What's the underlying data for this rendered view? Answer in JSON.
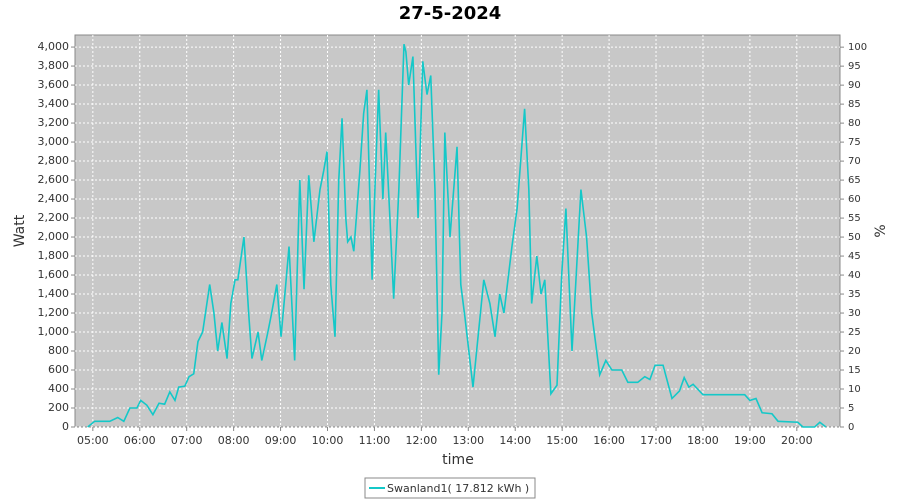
{
  "chart_data": {
    "type": "line",
    "title": "27-5-2024",
    "x_label": "time",
    "y_label": "Watt",
    "y2_label": "%",
    "xlim": [
      4.62,
      20.92
    ],
    "ylim": [
      0,
      4127
    ],
    "y2lim": [
      0,
      103.2
    ],
    "xticks": [
      {
        "value": 5,
        "label": "05:00"
      },
      {
        "value": 6,
        "label": "06:00"
      },
      {
        "value": 7,
        "label": "07:00"
      },
      {
        "value": 8,
        "label": "08:00"
      },
      {
        "value": 9,
        "label": "09:00"
      },
      {
        "value": 10,
        "label": "10:00"
      },
      {
        "value": 11,
        "label": "11:00"
      },
      {
        "value": 12,
        "label": "12:00"
      },
      {
        "value": 13,
        "label": "13:00"
      },
      {
        "value": 14,
        "label": "14:00"
      },
      {
        "value": 15,
        "label": "15:00"
      },
      {
        "value": 16,
        "label": "16:00"
      },
      {
        "value": 17,
        "label": "17:00"
      },
      {
        "value": 18,
        "label": "18:00"
      },
      {
        "value": 19,
        "label": "19:00"
      },
      {
        "value": 20,
        "label": "20:00"
      }
    ],
    "yticks": [
      0,
      200,
      400,
      600,
      800,
      {
        "value": 1000,
        "label": "1,000"
      },
      {
        "value": 1200,
        "label": "1,200"
      },
      {
        "value": 1400,
        "label": "1,400"
      },
      {
        "value": 1600,
        "label": "1,600"
      },
      {
        "value": 1800,
        "label": "1,800"
      },
      {
        "value": 2000,
        "label": "2,000"
      },
      {
        "value": 2200,
        "label": "2,200"
      },
      {
        "value": 2400,
        "label": "2,400"
      },
      {
        "value": 2600,
        "label": "2,600"
      },
      {
        "value": 2800,
        "label": "2,800"
      },
      {
        "value": 3000,
        "label": "3,000"
      },
      {
        "value": 3200,
        "label": "3,200"
      },
      {
        "value": 3400,
        "label": "3,400"
      },
      {
        "value": 3600,
        "label": "3,600"
      },
      {
        "value": 3800,
        "label": "3,800"
      },
      {
        "value": 4000,
        "label": "4,000"
      }
    ],
    "y2ticks": [
      0,
      5,
      10,
      15,
      20,
      25,
      30,
      35,
      40,
      45,
      50,
      55,
      60,
      65,
      70,
      75,
      80,
      85,
      90,
      95,
      100
    ],
    "grid": true,
    "x": [
      4.89,
      5.04,
      5.36,
      5.53,
      5.66,
      5.79,
      5.94,
      6.02,
      6.15,
      6.28,
      6.41,
      6.53,
      6.64,
      6.75,
      6.83,
      6.96,
      7.05,
      7.15,
      7.24,
      7.34,
      7.43,
      7.49,
      7.58,
      7.66,
      7.75,
      7.86,
      7.94,
      8.03,
      8.09,
      8.22,
      8.32,
      8.39,
      8.52,
      8.6,
      8.73,
      8.81,
      8.92,
      9.01,
      9.11,
      9.18,
      9.3,
      9.41,
      9.5,
      9.6,
      9.71,
      9.84,
      9.92,
      9.99,
      10.07,
      10.16,
      10.24,
      10.31,
      10.39,
      10.43,
      10.5,
      10.56,
      10.69,
      10.77,
      10.84,
      10.95,
      11.01,
      11.09,
      11.18,
      11.24,
      11.33,
      11.41,
      11.52,
      11.63,
      11.67,
      11.73,
      11.82,
      11.93,
      12.03,
      12.12,
      12.2,
      12.29,
      12.37,
      12.44,
      12.5,
      12.61,
      12.76,
      12.84,
      12.93,
      13.1,
      13.33,
      13.46,
      13.57,
      13.67,
      13.76,
      13.93,
      14.04,
      14.2,
      14.29,
      14.35,
      14.46,
      14.55,
      14.63,
      14.7,
      14.76,
      14.89,
      14.99,
      15.08,
      15.21,
      15.4,
      15.52,
      15.63,
      15.8,
      15.93,
      16.06,
      16.27,
      16.4,
      16.61,
      16.76,
      16.87,
      16.98,
      17.15,
      17.34,
      17.5,
      17.6,
      17.7,
      17.79,
      18.0,
      18.89,
      19.0,
      19.13,
      19.26,
      19.47,
      19.6,
      20.02,
      20.13,
      20.38,
      20.49,
      20.62
    ],
    "series": [
      {
        "name": "Swanland1( 17.812 kWh )",
        "color": "#14c8c8",
        "values": [
          0,
          60,
          60,
          100,
          60,
          200,
          200,
          280,
          230,
          130,
          250,
          240,
          370,
          280,
          420,
          430,
          530,
          560,
          900,
          1000,
          1300,
          1500,
          1200,
          800,
          1100,
          720,
          1300,
          1550,
          1550,
          2000,
          1200,
          720,
          1000,
          700,
          1000,
          1200,
          1500,
          950,
          1500,
          1900,
          700,
          2600,
          1450,
          2650,
          1950,
          2500,
          2700,
          2900,
          1500,
          950,
          2600,
          3250,
          2200,
          1950,
          2000,
          1850,
          2700,
          3300,
          3550,
          1550,
          2500,
          3550,
          2400,
          3100,
          2200,
          1350,
          2500,
          4030,
          3950,
          3600,
          3900,
          2200,
          3850,
          3500,
          3700,
          2500,
          550,
          1200,
          3100,
          2000,
          2950,
          1500,
          1150,
          420,
          1550,
          1300,
          950,
          1400,
          1200,
          1900,
          2300,
          3350,
          2500,
          1300,
          1800,
          1400,
          1550,
          900,
          350,
          440,
          1600,
          2300,
          800,
          2500,
          2000,
          1200,
          550,
          700,
          600,
          600,
          470,
          470,
          530,
          500,
          650,
          650,
          300,
          380,
          520,
          420,
          450,
          340,
          340,
          280,
          300,
          150,
          140,
          60,
          50,
          0,
          0,
          50,
          0
        ]
      }
    ],
    "legend": "bottom"
  }
}
